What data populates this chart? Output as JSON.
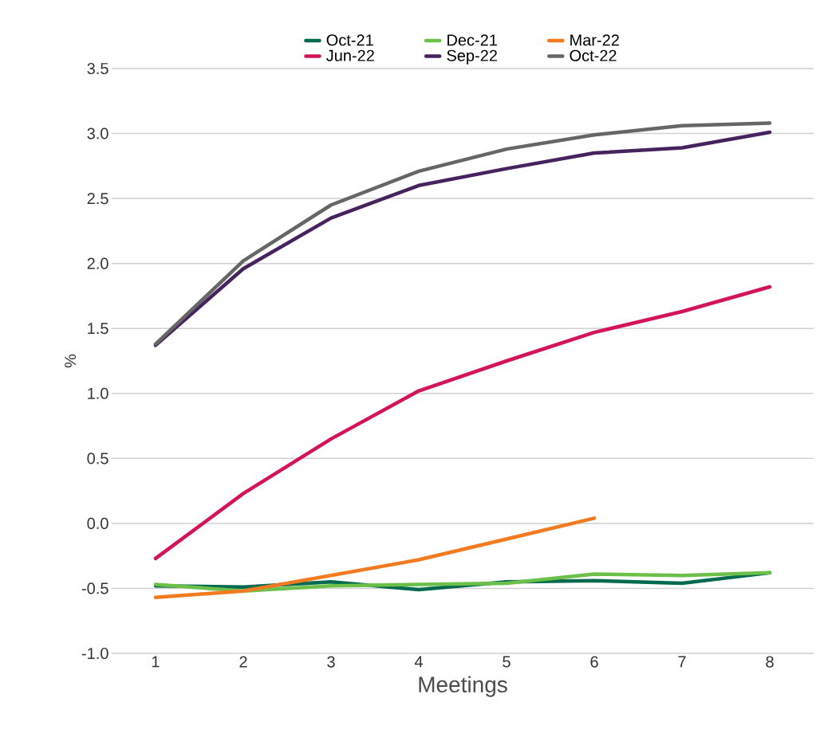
{
  "chart_data": {
    "type": "line",
    "xlabel": "Meetings",
    "ylabel": "%",
    "categories": [
      "1",
      "2",
      "3",
      "4",
      "5",
      "6",
      "7",
      "8"
    ],
    "series": [
      {
        "name": "Oct-21",
        "color": "#006a4e",
        "values": [
          -0.48,
          -0.49,
          -0.45,
          -0.51,
          -0.45,
          -0.44,
          -0.46,
          -0.38
        ]
      },
      {
        "name": "Dec-21",
        "color": "#6cc04a",
        "values": [
          -0.47,
          -0.52,
          -0.48,
          -0.47,
          -0.46,
          -0.39,
          -0.4,
          -0.38
        ]
      },
      {
        "name": "Mar-22",
        "color": "#f47a20",
        "values": [
          -0.57,
          -0.52,
          -0.4,
          -0.28,
          -0.12,
          0.04,
          null,
          null
        ]
      },
      {
        "name": "Jun-22",
        "color": "#d4145a",
        "values": [
          -0.27,
          0.23,
          0.65,
          1.02,
          1.25,
          1.47,
          1.63,
          1.82
        ]
      },
      {
        "name": "Sep-22",
        "color": "#46235e",
        "values": [
          1.37,
          1.96,
          2.35,
          2.6,
          2.73,
          2.85,
          2.89,
          3.01
        ]
      },
      {
        "name": "Oct-22",
        "color": "#666666",
        "values": [
          1.38,
          2.02,
          2.45,
          2.71,
          2.88,
          2.99,
          3.06,
          3.08
        ]
      }
    ],
    "ylim": [
      -1.0,
      3.5
    ],
    "yticks": [
      {
        "value": -1.0,
        "label": "-1.0"
      },
      {
        "value": -0.5,
        "label": "-0.5"
      },
      {
        "value": 0.0,
        "label": "0.0"
      },
      {
        "value": 0.5,
        "label": "0.5"
      },
      {
        "value": 1.0,
        "label": "1.0"
      },
      {
        "value": 1.5,
        "label": "1.5"
      },
      {
        "value": 2.0,
        "label": "2.0"
      },
      {
        "value": 2.5,
        "label": "2.5"
      },
      {
        "value": 3.0,
        "label": "3.0"
      },
      {
        "value": 3.5,
        "label": "3.5"
      }
    ],
    "grid": "y",
    "legend": "top",
    "marker": "none",
    "line_style": "solid"
  }
}
